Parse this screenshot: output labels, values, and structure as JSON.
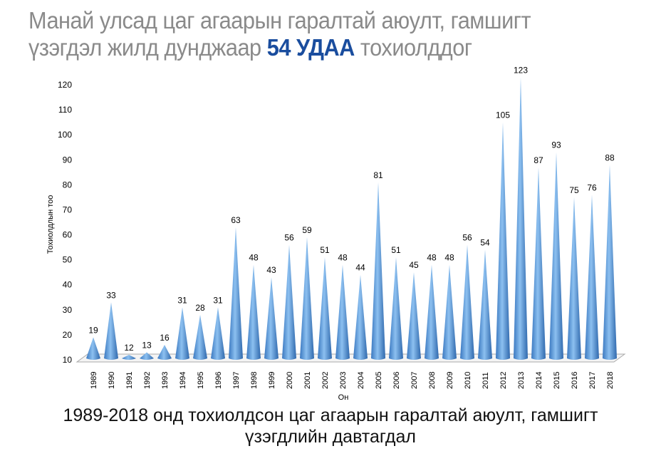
{
  "title": {
    "line1": "Манай улсад цаг агаарын гаралтай аюулт, гамшигт",
    "line2_before": "үзэгдэл жилд дунджаар",
    "line2_highlight": "54 УДАА",
    "line2_after": "тохиолддог"
  },
  "caption": {
    "line1": "1989-2018 онд тохиолдсон цаг агаарын гаралтай аюулт, гамшигт",
    "line2": "үзэгдлийн давтагдал"
  },
  "colors": {
    "title": "#8a8a8a",
    "highlight": "#1a4d9e",
    "cone": "#5b9bd5"
  },
  "chart_data": {
    "type": "bar",
    "bar_shape": "cone",
    "xlabel": "Он",
    "ylabel": "Тохиолдлын тоо",
    "ylim": [
      10,
      120
    ],
    "yticks": [
      10,
      20,
      30,
      40,
      50,
      60,
      70,
      80,
      90,
      100,
      110,
      120
    ],
    "grid": false,
    "categories": [
      "1989",
      "1990",
      "1991",
      "1992",
      "1993",
      "1994",
      "1995",
      "1996",
      "1997",
      "1998",
      "1999",
      "2000",
      "2001",
      "2002",
      "2003",
      "2004",
      "2005",
      "2006",
      "2007",
      "2008",
      "2009",
      "2010",
      "2011",
      "2012",
      "2013",
      "2014",
      "2015",
      "2016",
      "2017",
      "2018"
    ],
    "values": [
      19,
      33,
      12,
      13,
      16,
      31,
      28,
      31,
      63,
      48,
      43,
      56,
      59,
      51,
      48,
      44,
      81,
      51,
      45,
      48,
      48,
      56,
      54,
      105,
      123,
      87,
      93,
      75,
      76,
      88
    ]
  }
}
